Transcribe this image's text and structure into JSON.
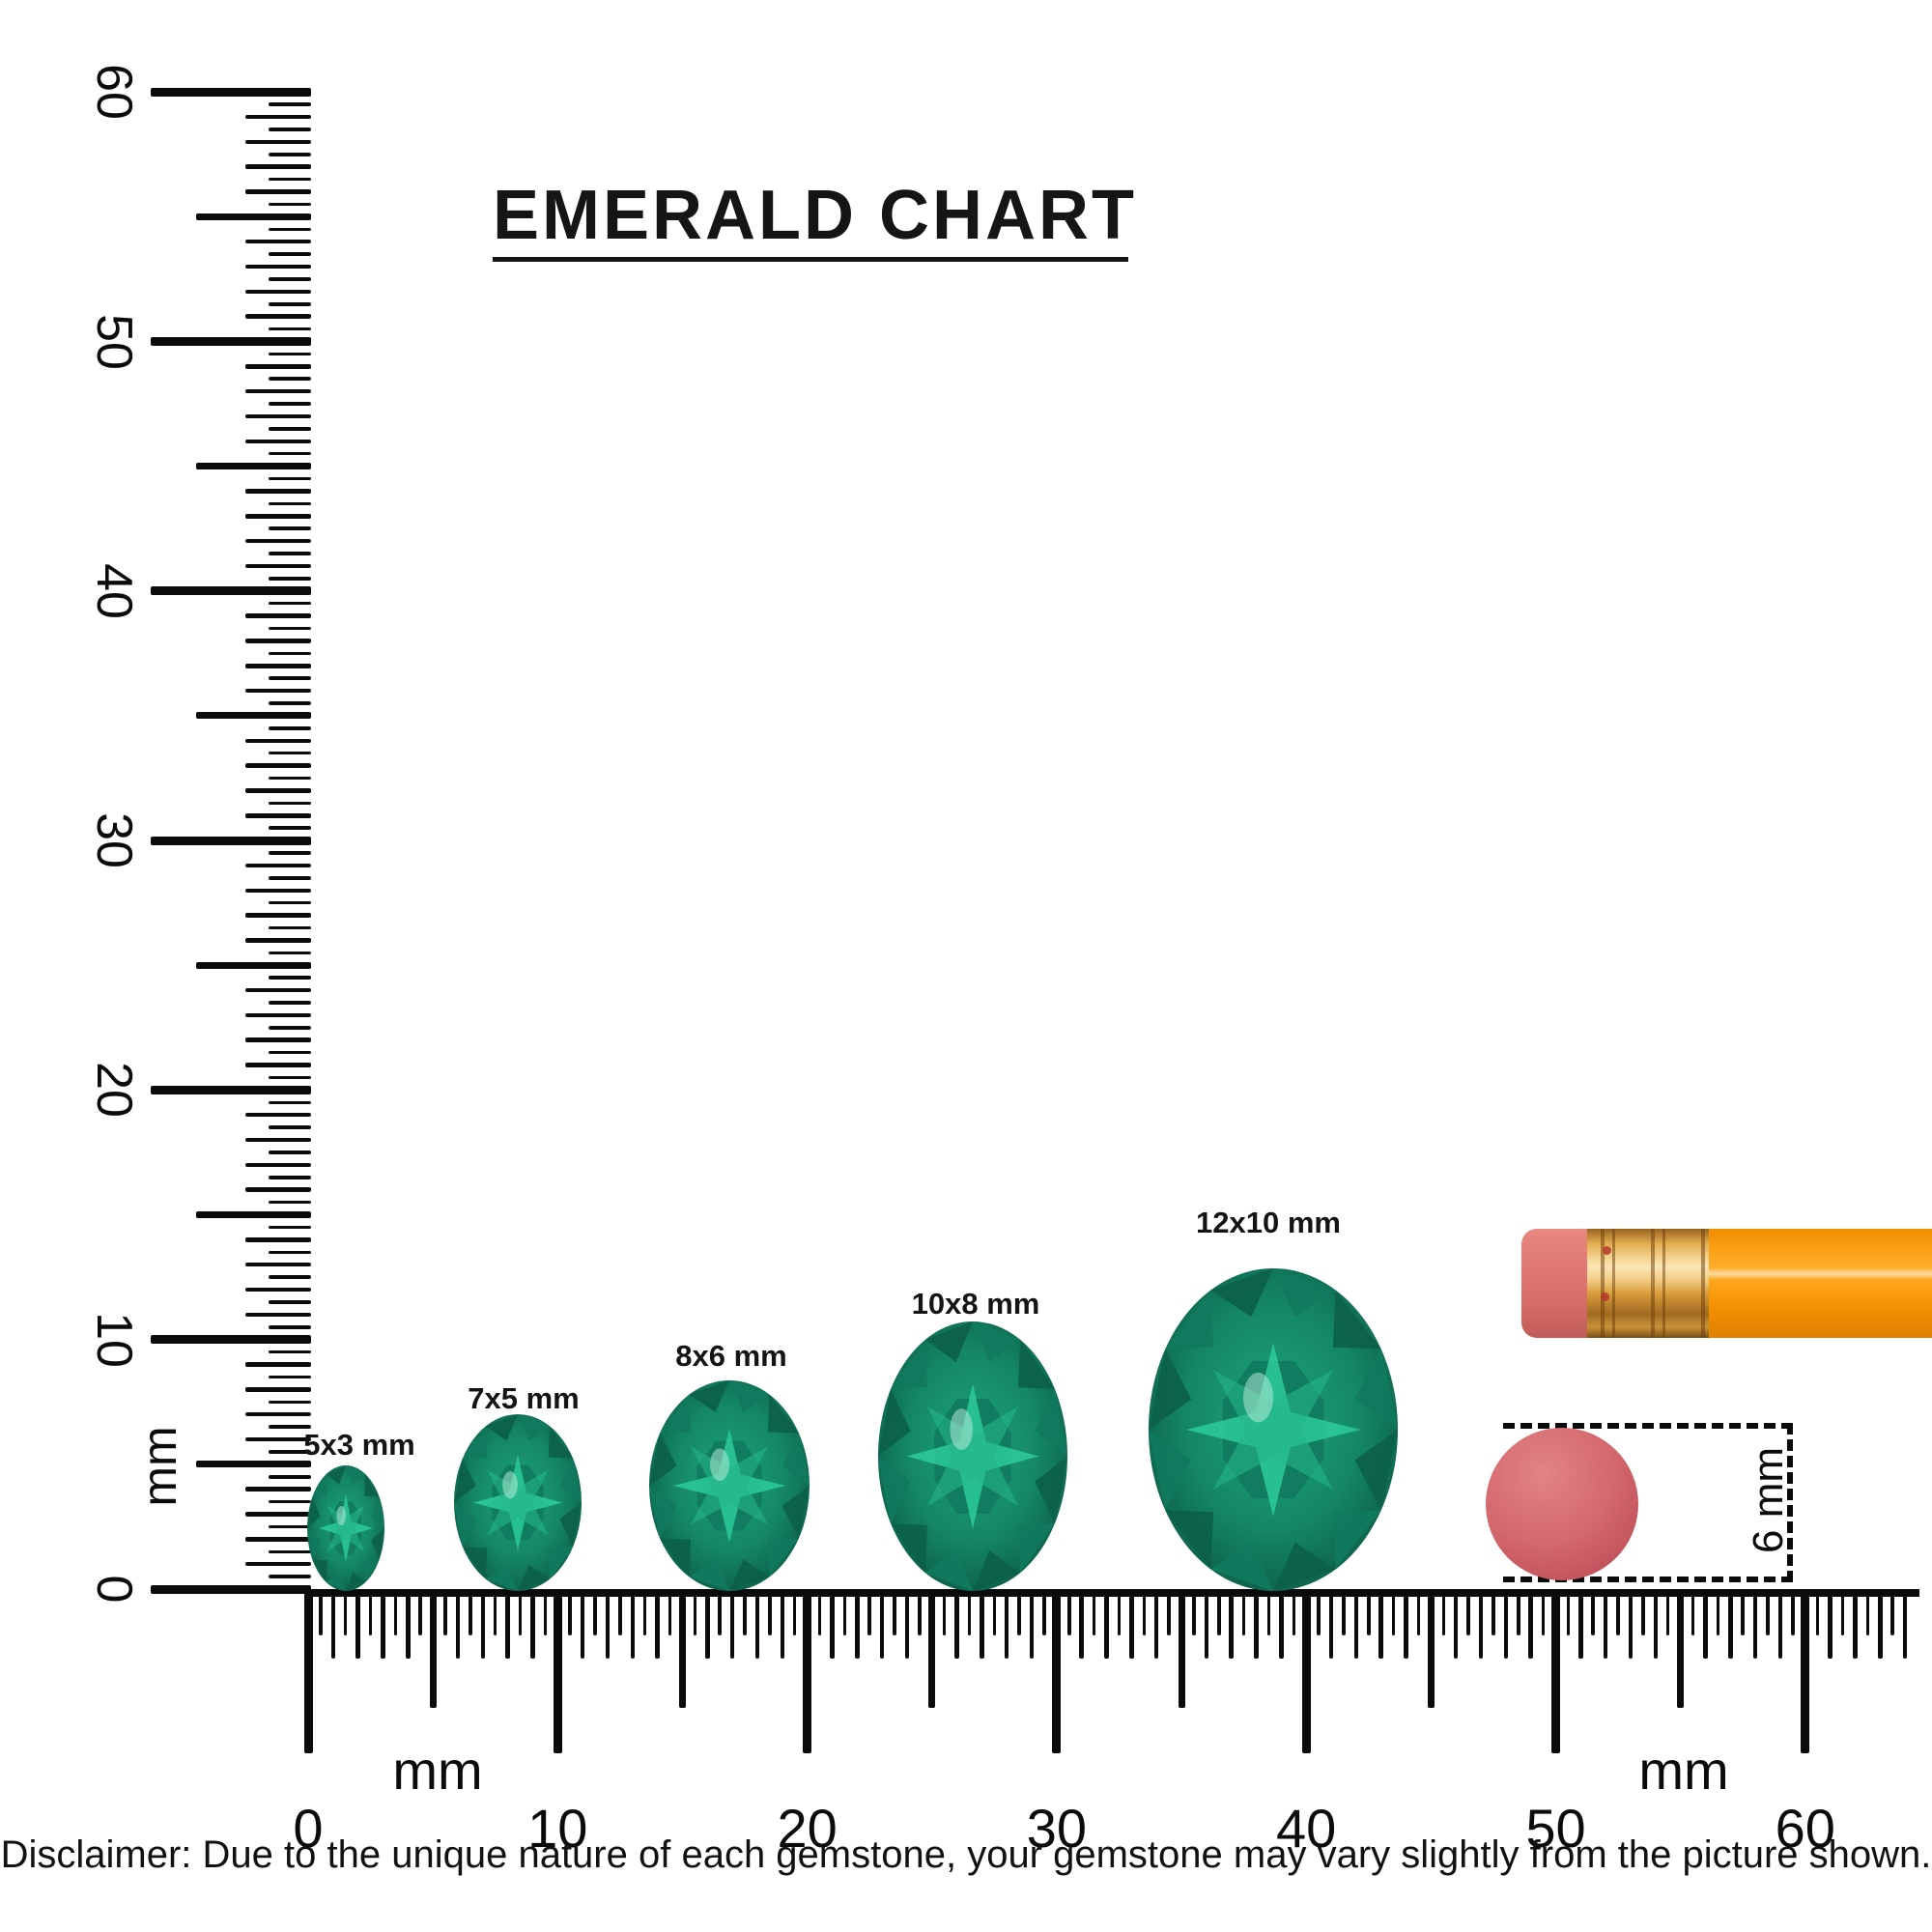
{
  "title": {
    "text": "EMERALD CHART"
  },
  "vertical_ruler": {
    "unit": "mm",
    "ticks": [
      {
        "label": "60",
        "mm": 60
      },
      {
        "label": "50",
        "mm": 50
      },
      {
        "label": "40",
        "mm": 40
      },
      {
        "label": "30",
        "mm": 30
      },
      {
        "label": "20",
        "mm": 20
      },
      {
        "label": "10",
        "mm": 10
      },
      {
        "label": "0",
        "mm": 0
      }
    ]
  },
  "horizontal_ruler": {
    "unit_left": "mm",
    "unit_right": "mm",
    "ticks": [
      {
        "label": "0",
        "mm": 0
      },
      {
        "label": "10",
        "mm": 10
      },
      {
        "label": "20",
        "mm": 20
      },
      {
        "label": "30",
        "mm": 30
      },
      {
        "label": "40",
        "mm": 40
      },
      {
        "label": "50",
        "mm": 50
      },
      {
        "label": "60",
        "mm": 60
      }
    ]
  },
  "gems": [
    {
      "label": "5x3 mm",
      "width_mm": 3,
      "height_mm": 5
    },
    {
      "label": "7x5 mm",
      "width_mm": 5,
      "height_mm": 7
    },
    {
      "label": "8x6 mm",
      "width_mm": 6,
      "height_mm": 8
    },
    {
      "label": "10x8 mm",
      "width_mm": 8,
      "height_mm": 10
    },
    {
      "label": "12x10 mm",
      "width_mm": 10,
      "height_mm": 12
    }
  ],
  "reference_objects": {
    "disc_size_label": "6 mm"
  },
  "disclaimer": {
    "text": "Disclaimer: Due to the unique nature of each gemstone, your gemstone may vary slightly from the picture shown."
  },
  "colors": {
    "emerald_dark": "#0a5340",
    "emerald_mid": "#148666",
    "emerald_bright": "#2ecf9e",
    "pencil_orange": "#fa9e13",
    "ferrule_gold": "#e3af53",
    "eraser_pink": "#e07a72",
    "disc_red": "#d4696e",
    "ink_black": "#0b0b0b"
  }
}
